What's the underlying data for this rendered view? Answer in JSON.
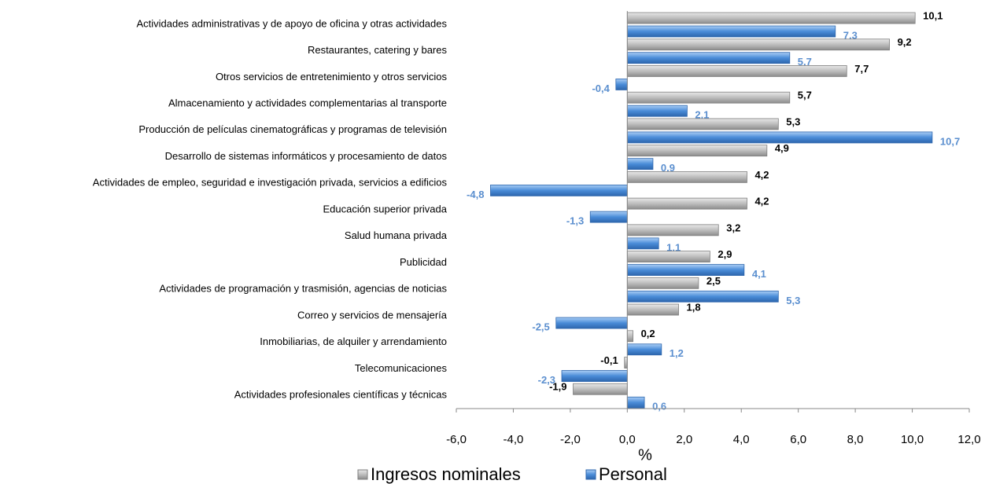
{
  "chart_data": {
    "type": "hbar",
    "categories": [
      "Actividades administrativas y de apoyo de oficina y otras actividades",
      "Restaurantes, catering y bares",
      "Otros servicios de entretenimiento y otros servicios",
      "Almacenamiento y actividades complementarias al transporte",
      "Producción de películas cinematográficas y programas de televisión",
      "Desarrollo de sistemas informáticos y procesamiento de datos",
      "Actividades de empleo, seguridad e investigación privada, servicios a edificios",
      "Educación superior privada",
      "Salud humana privada",
      "Publicidad",
      "Actividades de programación y trasmisión, agencias de noticias",
      "Correo y servicios de mensajería",
      "Inmobiliarias, de alquiler y arrendamiento",
      "Telecomunicaciones",
      "Actividades profesionales científicas y técnicas"
    ],
    "series": [
      {
        "name": "Ingresos nominales",
        "color": "#a6a6a6",
        "label_color": "#000000",
        "values": [
          10.1,
          9.2,
          7.7,
          5.7,
          5.3,
          4.9,
          4.2,
          4.2,
          3.2,
          2.9,
          2.5,
          1.8,
          0.2,
          -0.1,
          -1.9
        ],
        "value_labels": [
          "10,1",
          "9,2",
          "7,7",
          "5,7",
          "5,3",
          "4,9",
          "4,2",
          "4,2",
          "3,2",
          "2,9",
          "2,5",
          "1,8",
          "0,2",
          "-0,1",
          "-1,9"
        ]
      },
      {
        "name": "Personal",
        "color": "#4a8cd8",
        "label_color": "#5b8fcf",
        "values": [
          7.3,
          5.7,
          -0.4,
          2.1,
          10.7,
          0.9,
          -4.8,
          -1.3,
          1.1,
          4.1,
          5.3,
          -2.5,
          1.2,
          -2.3,
          0.6
        ],
        "value_labels": [
          "7,3",
          "5,7",
          "-0,4",
          "2,1",
          "10,7",
          "0,9",
          "-4,8",
          "-1,3",
          "1,1",
          "4,1",
          "5,3",
          "-2,5",
          "1,2",
          "-2,3",
          "0,6"
        ]
      }
    ],
    "xlabel": "%",
    "xlim": [
      -6,
      12
    ],
    "xticks": [
      {
        "value": -6,
        "label": "-6,0"
      },
      {
        "value": -4,
        "label": "-4,0"
      },
      {
        "value": -2,
        "label": "-2,0"
      },
      {
        "value": 0,
        "label": "0,0"
      },
      {
        "value": 2,
        "label": "2,0"
      },
      {
        "value": 4,
        "label": "4,0"
      },
      {
        "value": 6,
        "label": "6,0"
      },
      {
        "value": 8,
        "label": "8,0"
      },
      {
        "value": 10,
        "label": "10,0"
      },
      {
        "value": 12,
        "label": "12,0"
      }
    ],
    "legend": "bottom"
  }
}
